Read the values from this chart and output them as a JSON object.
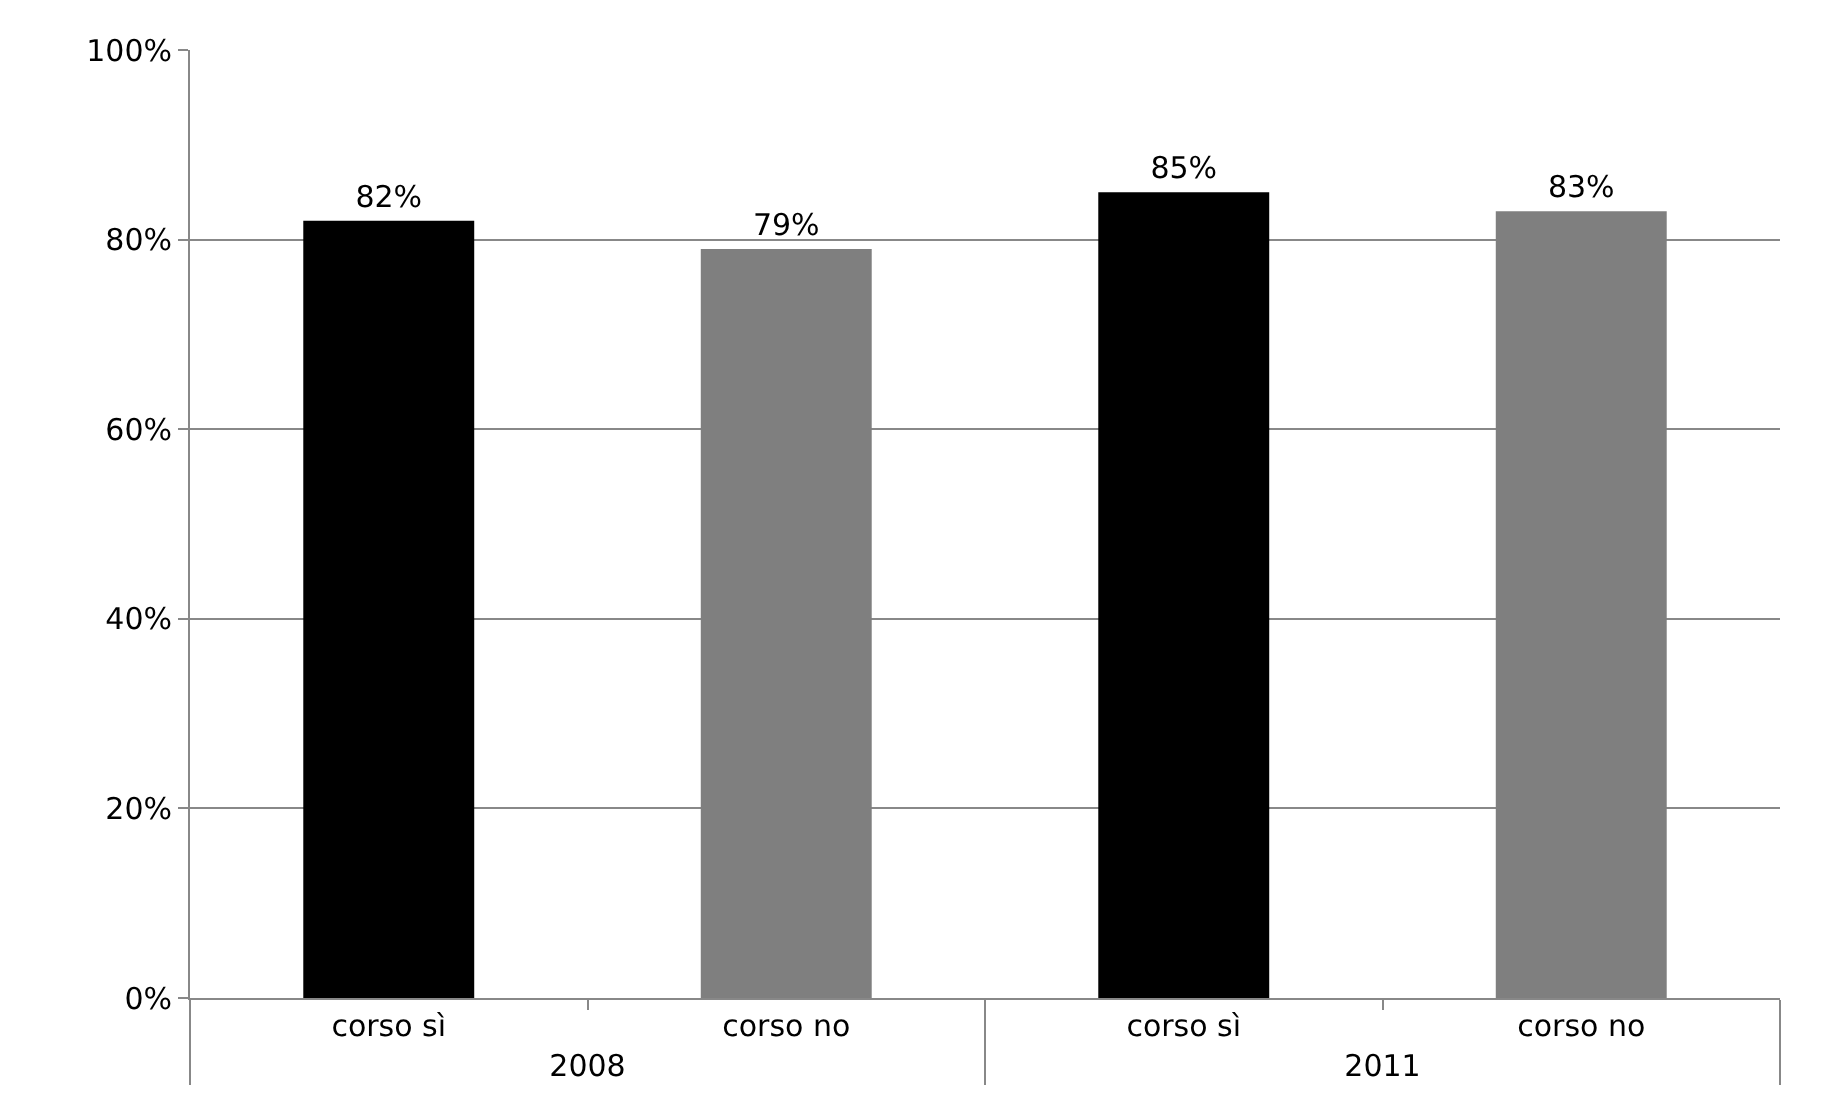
{
  "chart_data": {
    "type": "bar",
    "categories": [
      "corso sì",
      "corso no",
      "corso sì",
      "corso no"
    ],
    "values": [
      82,
      79,
      85,
      83
    ],
    "colors": [
      "#000000",
      "#7f7f7f",
      "#000000",
      "#7f7f7f"
    ],
    "value_labels": [
      "82%",
      "79%",
      "85%",
      "83%"
    ],
    "annotations": [
      "2008",
      "2011"
    ],
    "ylim": [
      0,
      100
    ],
    "yticks": [
      {
        "value": 0,
        "label": "0%"
      },
      {
        "value": 20,
        "label": "20%"
      },
      {
        "value": 40,
        "label": "40%"
      },
      {
        "value": 60,
        "label": "60%"
      },
      {
        "value": 80,
        "label": "80%"
      },
      {
        "value": 100,
        "label": "100%"
      }
    ],
    "grid": "y"
  }
}
